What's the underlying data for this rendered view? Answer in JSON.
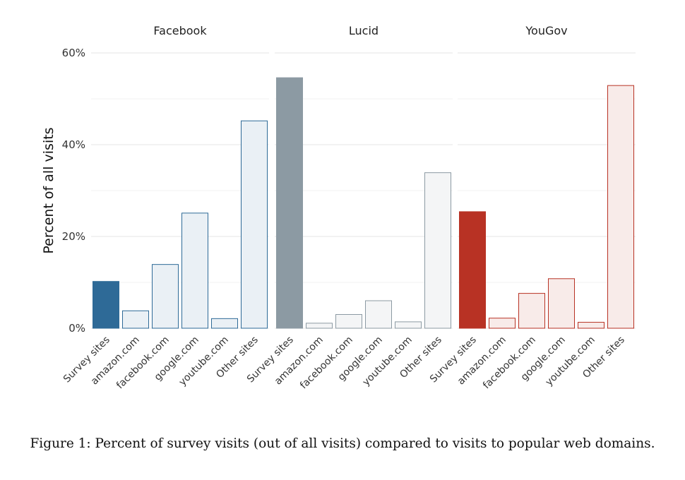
{
  "chart_data": {
    "type": "bar",
    "ylabel": "Percent of all visits",
    "ylim": [
      0,
      60
    ],
    "yticks": [
      "0%",
      "20%",
      "40%",
      "60%"
    ],
    "categories": [
      "Survey sites",
      "amazon.com",
      "facebook.com",
      "google.com",
      "youtube.com",
      "Other sites"
    ],
    "grid": true,
    "panels": [
      {
        "name": "Facebook",
        "color": "#2e6a97",
        "values": [
          10.2,
          3.8,
          13.9,
          25.1,
          2.1,
          45.2
        ]
      },
      {
        "name": "Lucid",
        "color": "#8c9aa3",
        "values": [
          54.6,
          1.1,
          3.0,
          6.0,
          1.4,
          33.9
        ]
      },
      {
        "name": "YouGov",
        "color": "#b83224",
        "values": [
          25.4,
          2.2,
          7.6,
          10.8,
          1.3,
          52.9
        ]
      }
    ]
  },
  "caption": "Figure 1:  Percent of survey visits (out of all visits) compared to visits to popular web domains."
}
